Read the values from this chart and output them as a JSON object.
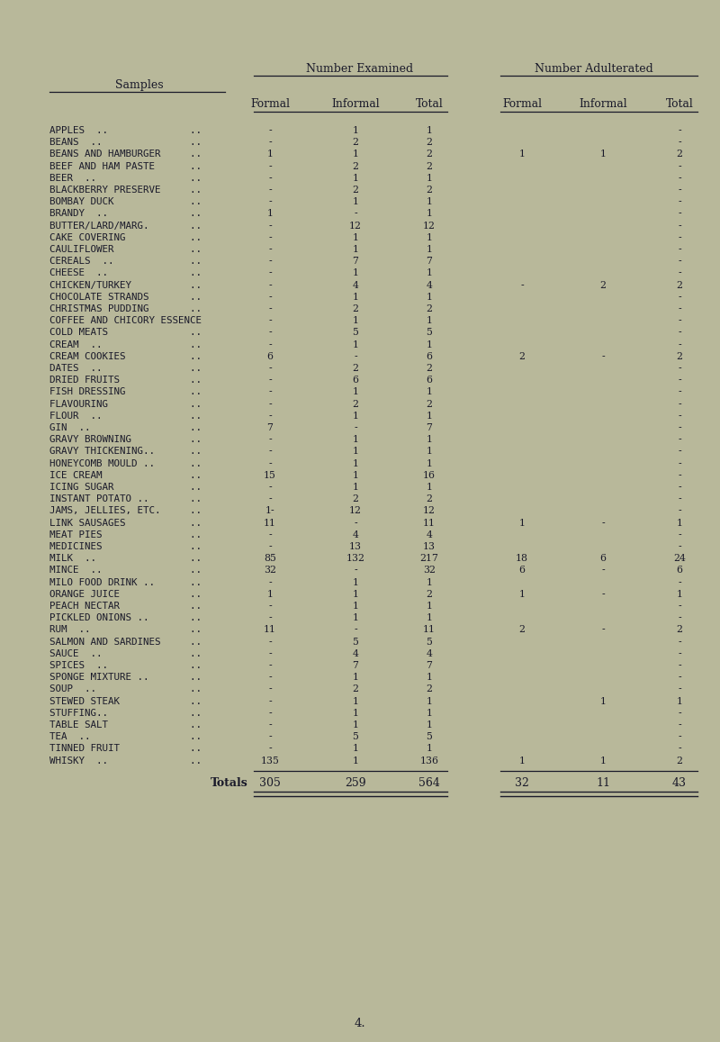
{
  "bg_color": "#b8b89a",
  "title_examined": "Number Examined",
  "title_adulterated": "Number Adulterated",
  "samples_header": "Samples",
  "page_number": "4.",
  "rows": [
    {
      "name": "APPLES  ..              ..",
      "ef": "-",
      "ei": "1",
      "et": "1",
      "af": "",
      "ai": "",
      "at": "-"
    },
    {
      "name": "BEANS  ..               ..",
      "ef": "-",
      "ei": "2",
      "et": "2",
      "af": "",
      "ai": "",
      "at": "-"
    },
    {
      "name": "BEANS AND HAMBURGER     ..",
      "ef": "1",
      "ei": "1",
      "et": "2",
      "af": "1",
      "ai": "1",
      "at": "2"
    },
    {
      "name": "BEEF AND HAM PASTE      ..",
      "ef": "-",
      "ei": "2",
      "et": "2",
      "af": "",
      "ai": "",
      "at": "-"
    },
    {
      "name": "BEER  ..                ..",
      "ef": "-",
      "ei": "1",
      "et": "1",
      "af": "",
      "ai": "",
      "at": "-"
    },
    {
      "name": "BLACKBERRY PRESERVE     ..",
      "ef": "-",
      "ei": "2",
      "et": "2",
      "af": "",
      "ai": "",
      "at": "-"
    },
    {
      "name": "BOMBAY DUCK             ..",
      "ef": "-",
      "ei": "1",
      "et": "1",
      "af": "",
      "ai": "",
      "at": "-"
    },
    {
      "name": "BRANDY  ..              ..",
      "ef": "1",
      "ei": "-",
      "et": "1",
      "af": "",
      "ai": "",
      "at": "-"
    },
    {
      "name": "BUTTER/LARD/MARG.       ..",
      "ef": "-",
      "ei": "12",
      "et": "12",
      "af": "",
      "ai": "",
      "at": "-"
    },
    {
      "name": "CAKE COVERING           ..",
      "ef": "-",
      "ei": "1",
      "et": "1",
      "af": "",
      "ai": "",
      "at": "-"
    },
    {
      "name": "CAULIFLOWER             ..",
      "ef": "-",
      "ei": "1",
      "et": "1",
      "af": "",
      "ai": "",
      "at": "-"
    },
    {
      "name": "CEREALS  ..             ..",
      "ef": "-",
      "ei": "7",
      "et": "7",
      "af": "",
      "ai": "",
      "at": "-"
    },
    {
      "name": "CHEESE  ..              ..",
      "ef": "-",
      "ei": "1",
      "et": "1",
      "af": "",
      "ai": "",
      "at": "-"
    },
    {
      "name": "CHICKEN/TURKEY          ..",
      "ef": "-",
      "ei": "4",
      "et": "4",
      "af": "-",
      "ai": "2",
      "at": "2"
    },
    {
      "name": "CHOCOLATE STRANDS       ..",
      "ef": "-",
      "ei": "1",
      "et": "1",
      "af": "",
      "ai": "",
      "at": "-"
    },
    {
      "name": "CHRISTMAS PUDDING       ..",
      "ef": "-",
      "ei": "2",
      "et": "2",
      "af": "",
      "ai": "",
      "at": "-"
    },
    {
      "name": "COFFEE AND CHICORY ESSENCE",
      "ef": "-",
      "ei": "1",
      "et": "1",
      "af": "",
      "ai": "",
      "at": "-"
    },
    {
      "name": "COLD MEATS              ..",
      "ef": "-",
      "ei": "5",
      "et": "5",
      "af": "",
      "ai": "",
      "at": "-"
    },
    {
      "name": "CREAM  ..               ..",
      "ef": "-",
      "ei": "1",
      "et": "1",
      "af": "",
      "ai": "",
      "at": "-"
    },
    {
      "name": "CREAM COOKIES           ..",
      "ef": "6",
      "ei": "-",
      "et": "6",
      "af": "2",
      "ai": "-",
      "at": "2"
    },
    {
      "name": "DATES  ..               ..",
      "ef": "-",
      "ei": "2",
      "et": "2",
      "af": "",
      "ai": "",
      "at": "-"
    },
    {
      "name": "DRIED FRUITS            ..",
      "ef": "-",
      "ei": "6",
      "et": "6",
      "af": "",
      "ai": "",
      "at": "-"
    },
    {
      "name": "FISH DRESSING           ..",
      "ef": "-",
      "ei": "1",
      "et": "1",
      "af": "",
      "ai": "",
      "at": "-"
    },
    {
      "name": "FLAVOURING              ..",
      "ef": "-",
      "ei": "2",
      "et": "2",
      "af": "",
      "ai": "",
      "at": "-"
    },
    {
      "name": "FLOUR  ..               ..",
      "ef": "-",
      "ei": "1",
      "et": "1",
      "af": "",
      "ai": "",
      "at": "-"
    },
    {
      "name": "GIN  ..                 ..",
      "ef": "7",
      "ei": "-",
      "et": "7",
      "af": "",
      "ai": "",
      "at": "-"
    },
    {
      "name": "GRAVY BROWNING          ..",
      "ef": "-",
      "ei": "1",
      "et": "1",
      "af": "",
      "ai": "",
      "at": "-"
    },
    {
      "name": "GRAVY THICKENING..      ..",
      "ef": "-",
      "ei": "1",
      "et": "1",
      "af": "",
      "ai": "",
      "at": "-"
    },
    {
      "name": "HONEYCOMB MOULD ..      ..",
      "ef": "-",
      "ei": "1",
      "et": "1",
      "af": "",
      "ai": "",
      "at": "-"
    },
    {
      "name": "ICE CREAM               ..",
      "ef": "15",
      "ei": "1",
      "et": "16",
      "af": "",
      "ai": "",
      "at": "-"
    },
    {
      "name": "ICING SUGAR             ..",
      "ef": "-",
      "ei": "1",
      "et": "1",
      "af": "",
      "ai": "",
      "at": "-"
    },
    {
      "name": "INSTANT POTATO ..       ..",
      "ef": "-",
      "ei": "2",
      "et": "2",
      "af": "",
      "ai": "",
      "at": "-"
    },
    {
      "name": "JAMS, JELLIES, ETC.     ..",
      "ef": "1-",
      "ei": "12",
      "et": "12",
      "af": "",
      "ai": "",
      "at": "-"
    },
    {
      "name": "LINK SAUSAGES           ..",
      "ef": "11",
      "ei": "-",
      "et": "11",
      "af": "1",
      "ai": "-",
      "at": "1"
    },
    {
      "name": "MEAT PIES               ..",
      "ef": "-",
      "ei": "4",
      "et": "4",
      "af": "",
      "ai": "",
      "at": "-"
    },
    {
      "name": "MEDICINES               ..",
      "ef": "-",
      "ei": "13",
      "et": "13",
      "af": "",
      "ai": "",
      "at": "-"
    },
    {
      "name": "MILK  ..                ..",
      "ef": "85",
      "ei": "132",
      "et": "217",
      "af": "18",
      "ai": "6",
      "at": "24"
    },
    {
      "name": "MINCE  ..               ..",
      "ef": "32",
      "ei": "-",
      "et": "32",
      "af": "6",
      "ai": "-",
      "at": "6"
    },
    {
      "name": "MILO FOOD DRINK ..      ..",
      "ef": "-",
      "ei": "1",
      "et": "1",
      "af": "",
      "ai": "",
      "at": "-"
    },
    {
      "name": "ORANGE JUICE            ..",
      "ef": "1",
      "ei": "1",
      "et": "2",
      "af": "1",
      "ai": "-",
      "at": "1"
    },
    {
      "name": "PEACH NECTAR            ..",
      "ef": "-",
      "ei": "1",
      "et": "1",
      "af": "",
      "ai": "",
      "at": "-"
    },
    {
      "name": "PICKLED ONIONS ..       ..",
      "ef": "-",
      "ei": "1",
      "et": "1",
      "af": "",
      "ai": "",
      "at": "-"
    },
    {
      "name": "RUM  ..                 ..",
      "ef": "11",
      "ei": "-",
      "et": "11",
      "af": "2",
      "ai": "-",
      "at": "2"
    },
    {
      "name": "SALMON AND SARDINES     ..",
      "ef": "-",
      "ei": "5",
      "et": "5",
      "af": "",
      "ai": "",
      "at": "-"
    },
    {
      "name": "SAUCE  ..               ..",
      "ef": "-",
      "ei": "4",
      "et": "4",
      "af": "",
      "ai": "",
      "at": "-"
    },
    {
      "name": "SPICES  ..              ..",
      "ef": "-",
      "ei": "7",
      "et": "7",
      "af": "",
      "ai": "",
      "at": "-"
    },
    {
      "name": "SPONGE MIXTURE ..       ..",
      "ef": "-",
      "ei": "1",
      "et": "1",
      "af": "",
      "ai": "",
      "at": "-"
    },
    {
      "name": "SOUP  ..                ..",
      "ef": "-",
      "ei": "2",
      "et": "2",
      "af": "",
      "ai": "",
      "at": "-"
    },
    {
      "name": "STEWED STEAK            ..",
      "ef": "-",
      "ei": "1",
      "et": "1",
      "af": "",
      "ai": "1",
      "at": "1"
    },
    {
      "name": "STUFFING..              ..",
      "ef": "-",
      "ei": "1",
      "et": "1",
      "af": "",
      "ai": "",
      "at": "-"
    },
    {
      "name": "TABLE SALT              ..",
      "ef": "-",
      "ei": "1",
      "et": "1",
      "af": "",
      "ai": "",
      "at": "-"
    },
    {
      "name": "TEA  ..                 ..",
      "ef": "-",
      "ei": "5",
      "et": "5",
      "af": "",
      "ai": "",
      "at": "-"
    },
    {
      "name": "TINNED FRUIT            ..",
      "ef": "-",
      "ei": "1",
      "et": "1",
      "af": "",
      "ai": "",
      "at": "-"
    },
    {
      "name": "WHISKY  ..              ..",
      "ef": "135",
      "ei": "1",
      "et": "136",
      "af": "1",
      "ai": "1",
      "at": "2"
    }
  ],
  "totals": {
    "label": "Totals",
    "ef": "305",
    "ei": "259",
    "et": "564",
    "af": "32",
    "ai": "11",
    "at": "43"
  },
  "text_color": "#1a1a2a",
  "font_size_title": 9.0,
  "font_size_subhdr": 8.8,
  "font_size_data": 7.8,
  "font_size_totals": 9.0,
  "font_size_page": 9.5
}
